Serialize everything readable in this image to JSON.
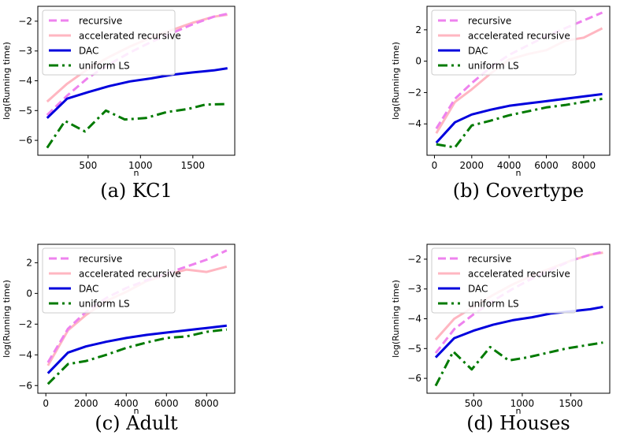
{
  "colors": {
    "recursive": "#ee82ee",
    "accelerated recursive": "#ffb6c1",
    "DAC": "#0000dd",
    "uniform LS": "#007a00"
  },
  "chart_data": [
    {
      "type": "line",
      "caption": "(a) KC1",
      "xlabel": "n",
      "ylabel": "log(Running time)",
      "xlim": [
        20,
        1900
      ],
      "ylim": [
        -6.5,
        -1.5
      ],
      "xticks": [
        500,
        1000,
        1500
      ],
      "yticks": [
        -6,
        -5,
        -4,
        -3,
        -2
      ],
      "legend": "upper-left",
      "grid": false,
      "series": [
        {
          "name": "recursive",
          "style": "dashed",
          "x": [
            109,
            300,
            500,
            700,
            900,
            1100,
            1300,
            1500,
            1700,
            1830
          ],
          "y": [
            -5.15,
            -4.5,
            -3.9,
            -3.45,
            -3.05,
            -2.7,
            -2.4,
            -2.1,
            -1.85,
            -1.75
          ]
        },
        {
          "name": "accelerated recursive",
          "style": "solid",
          "x": [
            109,
            300,
            500,
            700,
            900,
            1100,
            1300,
            1500,
            1700,
            1830
          ],
          "y": [
            -4.7,
            -4.1,
            -3.6,
            -3.2,
            -2.85,
            -2.55,
            -2.3,
            -2.05,
            -1.85,
            -1.78
          ]
        },
        {
          "name": "DAC",
          "style": "solid",
          "x": [
            109,
            300,
            500,
            700,
            900,
            1100,
            1300,
            1500,
            1700,
            1830
          ],
          "y": [
            -5.25,
            -4.6,
            -4.38,
            -4.18,
            -4.02,
            -3.92,
            -3.8,
            -3.72,
            -3.65,
            -3.58
          ]
        },
        {
          "name": "uniform LS",
          "style": "dashdot",
          "x": [
            109,
            280,
            470,
            670,
            850,
            1050,
            1250,
            1450,
            1620,
            1830
          ],
          "y": [
            -6.25,
            -5.35,
            -5.7,
            -5.0,
            -5.3,
            -5.25,
            -5.05,
            -4.95,
            -4.8,
            -4.78
          ]
        }
      ]
    },
    {
      "type": "line",
      "caption": "(b) Covertype",
      "xlabel": "n",
      "ylabel": "log(Running time)",
      "xlim": [
        -400,
        9400
      ],
      "ylim": [
        -6,
        3.5
      ],
      "xticks": [
        0,
        2000,
        4000,
        6000,
        8000
      ],
      "yticks": [
        -4,
        -2,
        0,
        2
      ],
      "legend": "upper-left",
      "grid": false,
      "series": [
        {
          "name": "recursive",
          "style": "dashed",
          "x": [
            100,
            1100,
            2000,
            3000,
            4000,
            5000,
            6000,
            7000,
            8000,
            9000
          ],
          "y": [
            -4.3,
            -2.4,
            -1.4,
            -0.4,
            0.4,
            1.0,
            1.6,
            2.1,
            2.6,
            3.1
          ]
        },
        {
          "name": "accelerated recursive",
          "style": "solid",
          "x": [
            100,
            1100,
            2000,
            3000,
            4000,
            5000,
            6000,
            7000,
            8000,
            9000
          ],
          "y": [
            -4.6,
            -2.6,
            -1.8,
            -0.8,
            0.1,
            0.45,
            0.7,
            1.3,
            1.5,
            2.1
          ]
        },
        {
          "name": "DAC",
          "style": "solid",
          "x": [
            100,
            1100,
            2000,
            3000,
            4000,
            5000,
            6000,
            7000,
            8000,
            9000
          ],
          "y": [
            -5.2,
            -3.9,
            -3.4,
            -3.1,
            -2.85,
            -2.7,
            -2.55,
            -2.4,
            -2.25,
            -2.1
          ]
        },
        {
          "name": "uniform LS",
          "style": "dashdot",
          "x": [
            100,
            1100,
            2000,
            3000,
            4000,
            5000,
            6000,
            7000,
            8000,
            9000
          ],
          "y": [
            -5.3,
            -5.5,
            -4.1,
            -3.8,
            -3.45,
            -3.2,
            -2.95,
            -2.8,
            -2.6,
            -2.4
          ]
        }
      ]
    },
    {
      "type": "line",
      "caption": "(c) Adult",
      "xlabel": "n",
      "ylabel": "log(Running time)",
      "xlim": [
        -400,
        9400
      ],
      "ylim": [
        -6.5,
        3.2
      ],
      "xticks": [
        0,
        2000,
        4000,
        6000,
        8000
      ],
      "yticks": [
        -6,
        -4,
        -2,
        0,
        2
      ],
      "legend": "upper-left",
      "grid": false,
      "series": [
        {
          "name": "recursive",
          "style": "dashed",
          "x": [
            100,
            1100,
            2000,
            3000,
            4000,
            5000,
            6000,
            7000,
            8000,
            9000
          ],
          "y": [
            -4.5,
            -2.3,
            -1.2,
            -0.3,
            0.35,
            0.85,
            1.3,
            1.75,
            2.2,
            2.8
          ]
        },
        {
          "name": "accelerated recursive",
          "style": "solid",
          "x": [
            100,
            1100,
            2000,
            3000,
            4000,
            5000,
            6000,
            7000,
            8000,
            9000
          ],
          "y": [
            -4.7,
            -2.4,
            -1.4,
            -0.5,
            0.1,
            0.8,
            1.2,
            1.55,
            1.4,
            1.75
          ]
        },
        {
          "name": "DAC",
          "style": "solid",
          "x": [
            100,
            1100,
            2000,
            3000,
            4000,
            5000,
            6000,
            7000,
            8000,
            9000
          ],
          "y": [
            -5.2,
            -3.85,
            -3.45,
            -3.15,
            -2.9,
            -2.7,
            -2.55,
            -2.4,
            -2.25,
            -2.1
          ]
        },
        {
          "name": "uniform LS",
          "style": "dashdot",
          "x": [
            100,
            1100,
            2000,
            3000,
            4000,
            5000,
            6000,
            7000,
            8000,
            9000
          ],
          "y": [
            -5.9,
            -4.6,
            -4.4,
            -4.0,
            -3.55,
            -3.2,
            -2.9,
            -2.8,
            -2.5,
            -2.35
          ]
        }
      ]
    },
    {
      "type": "line",
      "caption": "(d) Houses",
      "xlabel": "n",
      "ylabel": "log(Running time)",
      "xlim": [
        20,
        1900
      ],
      "ylim": [
        -6.5,
        -1.5
      ],
      "xticks": [
        500,
        1000,
        1500
      ],
      "yticks": [
        -6,
        -5,
        -4,
        -3,
        -2
      ],
      "legend": "upper-left",
      "grid": false,
      "series": [
        {
          "name": "recursive",
          "style": "dashed",
          "x": [
            109,
            300,
            500,
            700,
            900,
            1100,
            1300,
            1500,
            1700,
            1830
          ],
          "y": [
            -5.15,
            -4.35,
            -3.85,
            -3.4,
            -3.0,
            -2.65,
            -2.35,
            -2.05,
            -1.85,
            -1.75
          ]
        },
        {
          "name": "accelerated recursive",
          "style": "solid",
          "x": [
            109,
            300,
            500,
            700,
            900,
            1100,
            1300,
            1500,
            1700,
            1830
          ],
          "y": [
            -4.7,
            -4.0,
            -3.6,
            -3.2,
            -2.85,
            -2.55,
            -2.3,
            -2.05,
            -1.85,
            -1.78
          ]
        },
        {
          "name": "DAC",
          "style": "solid",
          "x": [
            109,
            300,
            500,
            700,
            900,
            1100,
            1300,
            1500,
            1700,
            1830
          ],
          "y": [
            -5.3,
            -4.65,
            -4.4,
            -4.2,
            -4.05,
            -3.95,
            -3.82,
            -3.75,
            -3.68,
            -3.6
          ]
        },
        {
          "name": "uniform LS",
          "style": "dashdot",
          "x": [
            109,
            290,
            480,
            670,
            860,
            1050,
            1250,
            1450,
            1640,
            1830
          ],
          "y": [
            -6.25,
            -5.1,
            -5.7,
            -4.95,
            -5.4,
            -5.3,
            -5.15,
            -5.0,
            -4.9,
            -4.8
          ]
        }
      ]
    }
  ]
}
